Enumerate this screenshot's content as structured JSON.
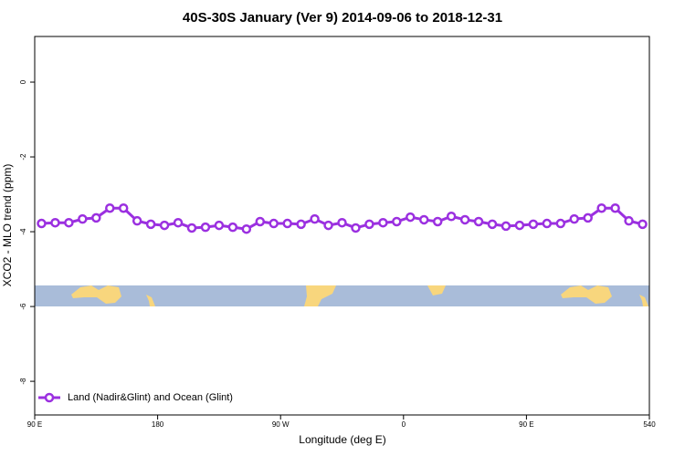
{
  "chart_data": {
    "type": "line",
    "title": "40S-30S January (Ver 9)   2014-09-06 to 2018-12-31",
    "x_label": "Longitude (deg E)",
    "y_label": "XCO2 - MLO trend (ppm)",
    "x": [
      95,
      105,
      115,
      125,
      135,
      145,
      155,
      165,
      175,
      185,
      195,
      205,
      215,
      225,
      235,
      245,
      255,
      265,
      275,
      285,
      295,
      305,
      315,
      325,
      335,
      345,
      355,
      365,
      375,
      385,
      395,
      405,
      415,
      425,
      435,
      445,
      455,
      465,
      475,
      485,
      495,
      505,
      515,
      525,
      535
    ],
    "series": [
      {
        "name": "Land (Nadir&Glint) and Ocean (Glint)",
        "color": "#9b30e0",
        "values": [
          -3.78,
          -3.76,
          -3.76,
          -3.66,
          -3.63,
          -3.37,
          -3.37,
          -3.71,
          -3.8,
          -3.83,
          -3.76,
          -3.9,
          -3.88,
          -3.83,
          -3.88,
          -3.93,
          -3.73,
          -3.78,
          -3.78,
          -3.8,
          -3.66,
          -3.83,
          -3.76,
          -3.9,
          -3.8,
          -3.76,
          -3.73,
          -3.61,
          -3.68,
          -3.73,
          -3.59,
          -3.68,
          -3.73,
          -3.8,
          -3.85,
          -3.83,
          -3.8,
          -3.78,
          -3.78,
          -3.66,
          -3.63,
          -3.37,
          -3.37,
          -3.71,
          -3.8
        ]
      }
    ],
    "xlim": [
      90,
      540
    ],
    "ylim": [
      -8.9,
      1.22
    ],
    "xticks": [
      {
        "value": 90,
        "label": "90 E"
      },
      180,
      {
        "value": 270,
        "label": "90 W"
      },
      {
        "value": 360,
        "label": "0"
      },
      {
        "value": 450,
        "label": "90 E"
      },
      540
    ],
    "yticks": [
      0,
      -2,
      -4,
      -6,
      -8
    ],
    "legend": "bottomleft"
  }
}
